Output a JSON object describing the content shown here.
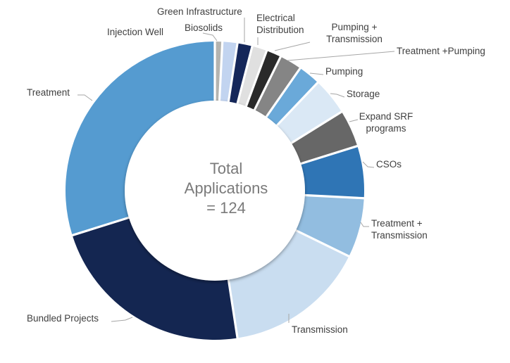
{
  "chart_data": {
    "type": "pie",
    "variant": "donut",
    "title": "",
    "center_label": [
      "Total",
      "Applications",
      "= 124"
    ],
    "total": 124,
    "start": "12 o'clock, clockwise",
    "slices": [
      {
        "label": "Injection Well",
        "value": 1,
        "color": "#b4b4b0"
      },
      {
        "label": "Biosolids",
        "value": 2,
        "color": "#c2d4f0"
      },
      {
        "label": "Green Infrastructure",
        "value": 2,
        "color": "#15275a"
      },
      {
        "label": "Electrical Distribution",
        "value": 2,
        "color": "#e0e0e0"
      },
      {
        "label": "Pumping + Transmission",
        "value": 2,
        "color": "#2a2a2a"
      },
      {
        "label": "Treatment +Pumping",
        "value": 3,
        "color": "#858585"
      },
      {
        "label": "Pumping",
        "value": 3,
        "color": "#6aa9d9"
      },
      {
        "label": "Storage",
        "value": 5,
        "color": "#dae8f5"
      },
      {
        "label": "Expand SRF programs",
        "value": 5,
        "color": "#676767"
      },
      {
        "label": "CSOs",
        "value": 7,
        "color": "#2f75b5"
      },
      {
        "label": "Treatment + Transmission",
        "value": 8,
        "color": "#92bde0"
      },
      {
        "label": "Transmission",
        "value": 19,
        "color": "#c9ddf0"
      },
      {
        "label": "Bundled Projects",
        "value": 28,
        "color": "#142651"
      },
      {
        "label": "Treatment",
        "value": 37,
        "color": "#559bd0"
      }
    ],
    "legend": "none (leader-line labels)"
  },
  "labels": {
    "injection_well": [
      "Injection Well"
    ],
    "biosolids": [
      "Biosolids"
    ],
    "green_infrastructure": [
      "Green Infrastructure"
    ],
    "electrical_distribution": [
      "Electrical",
      "Distribution"
    ],
    "pumping_transmission": [
      "Pumping +",
      "Transmission"
    ],
    "treatment_pumping": [
      "Treatment +Pumping"
    ],
    "pumping": [
      "Pumping"
    ],
    "storage": [
      "Storage"
    ],
    "expand_srf": [
      "Expand SRF",
      "programs"
    ],
    "csos": [
      "CSOs"
    ],
    "treatment_transmission": [
      "Treatment +",
      "Transmission"
    ],
    "transmission": [
      "Transmission"
    ],
    "bundled_projects": [
      "Bundled Projects"
    ],
    "treatment": [
      "Treatment"
    ]
  }
}
